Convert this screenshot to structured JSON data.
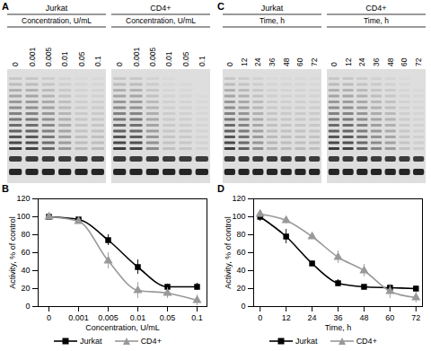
{
  "chart_data": [
    {
      "type": "line",
      "title": "B",
      "x_label": "Concentration, U/mL",
      "y_label": "Activity, % of control",
      "categories": [
        "0",
        "0.001",
        "0.005",
        "0.01",
        "0.05",
        "0.1"
      ],
      "ylim": [
        0,
        120
      ],
      "yticks": [
        0,
        20,
        40,
        60,
        80,
        100,
        120
      ],
      "grid": false,
      "legend": "bottom",
      "series": [
        {
          "name": "Jurkat",
          "color": "#000000",
          "marker": "square",
          "values": [
            100,
            97,
            74,
            44,
            22,
            22
          ],
          "errors": [
            3,
            3,
            6,
            8,
            3,
            4
          ]
        },
        {
          "name": "CD4+",
          "color": "#999999",
          "marker": "triangle",
          "values": [
            100,
            95,
            51,
            18,
            15,
            7
          ],
          "errors": [
            3,
            3,
            9,
            9,
            6,
            6
          ]
        }
      ]
    },
    {
      "type": "line",
      "title": "D",
      "x_label": "Time, h",
      "y_label": "Activity, % of control",
      "x": [
        0,
        12,
        24,
        36,
        48,
        60,
        72
      ],
      "xlim": [
        -3,
        75
      ],
      "xticks": [
        0,
        12,
        24,
        36,
        48,
        60,
        72
      ],
      "ylim": [
        0,
        120
      ],
      "yticks": [
        0,
        20,
        40,
        60,
        80,
        100,
        120
      ],
      "grid": false,
      "legend": "bottom",
      "series": [
        {
          "name": "Jurkat",
          "color": "#000000",
          "marker": "square",
          "values": [
            100,
            78,
            48,
            26,
            22,
            21,
            20
          ],
          "errors": [
            5,
            8,
            3,
            4,
            2,
            2,
            3
          ]
        },
        {
          "name": "CD4+",
          "color": "#999999",
          "marker": "triangle",
          "values": [
            103,
            96,
            78,
            55,
            40,
            17,
            10
          ],
          "errors": [
            4,
            4,
            3,
            7,
            7,
            8,
            6
          ]
        }
      ]
    }
  ],
  "gels": [
    {
      "title": "A",
      "axis_label": "Concentration, U/mL",
      "panels": [
        {
          "name": "Jurkat",
          "lanes": [
            "0",
            "0.001",
            "0.005",
            "0.01",
            "0.05",
            "0.1"
          ]
        },
        {
          "name": "CD4+",
          "lanes": [
            "0",
            "0.001",
            "0.005",
            "0.01",
            "0.05",
            "0.1"
          ]
        }
      ]
    },
    {
      "title": "C",
      "axis_label": "Time, h",
      "panels": [
        {
          "name": "Jurkat",
          "lanes": [
            "0",
            "12",
            "24",
            "36",
            "48",
            "60",
            "72"
          ]
        },
        {
          "name": "CD4+",
          "lanes": [
            "0",
            "12",
            "24",
            "36",
            "48",
            "60",
            "72"
          ]
        }
      ]
    }
  ]
}
